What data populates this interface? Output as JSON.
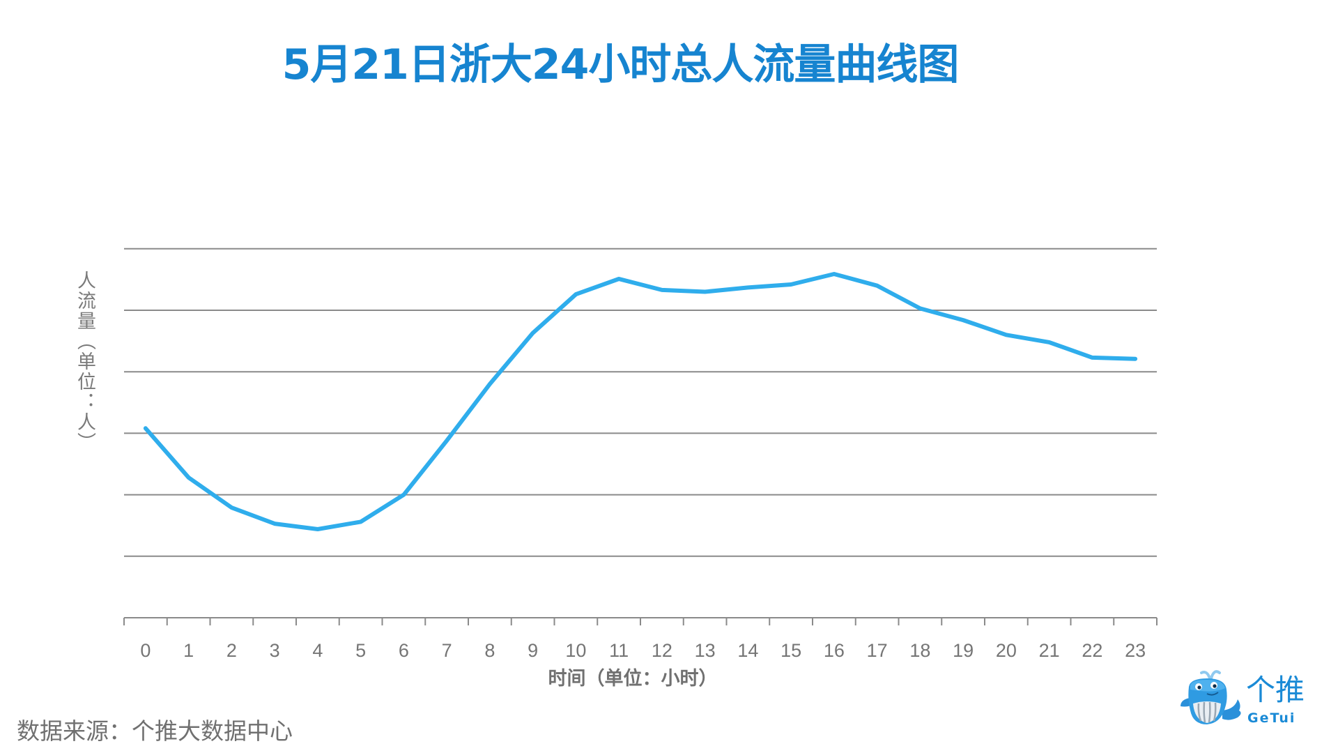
{
  "title": "5月21日浙大24小时总人流量曲线图",
  "y_axis_label": "人流量︵单位：人︶",
  "x_axis_label": "时间（单位：小时）",
  "source": "数据来源：个推大数据中心",
  "logo": {
    "name_cn": "个推",
    "name_en": "GeTui",
    "icon": "whale-mascot-icon"
  },
  "colors": {
    "title": "#1684d0",
    "line": "#2fadec",
    "grid": "#8a8a8a",
    "text": "#757575",
    "brand": "#1a8ad6"
  },
  "chart_data": {
    "type": "line",
    "title": "5月21日浙大24小时总人流量曲线图",
    "xlabel": "时间（单位：小时）",
    "ylabel": "人流量（单位：人）",
    "categories": [
      "0",
      "1",
      "2",
      "3",
      "4",
      "5",
      "6",
      "7",
      "8",
      "9",
      "10",
      "11",
      "12",
      "13",
      "14",
      "15",
      "16",
      "17",
      "18",
      "19",
      "20",
      "21",
      "22",
      "23"
    ],
    "series": [
      {
        "name": "人流量",
        "values": [
          3.08,
          2.28,
          1.79,
          1.53,
          1.44,
          1.56,
          2.0,
          2.88,
          3.8,
          4.63,
          5.26,
          5.51,
          5.33,
          5.3,
          5.37,
          5.42,
          5.59,
          5.4,
          5.03,
          4.84,
          4.6,
          4.48,
          4.23,
          4.21
        ]
      }
    ],
    "value_units": "gridline units (no y-axis tick labels shown; axis = 0, top gridline = 6)",
    "ylim": [
      0,
      6
    ],
    "gridlines": 6,
    "grid": true,
    "legend": "none"
  }
}
